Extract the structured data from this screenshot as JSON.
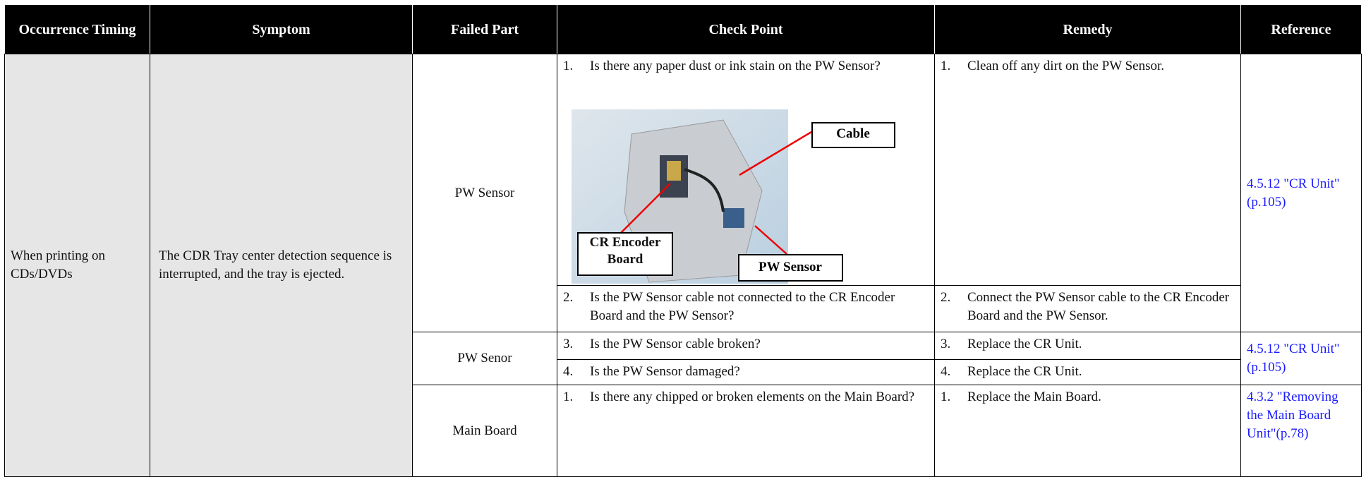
{
  "table": {
    "headers": [
      "Occurrence Timing",
      "Symptom",
      "Failed Part",
      "Check Point",
      "Remedy",
      "Reference"
    ],
    "occurrence_timing": "When printing on CDs/DVDs",
    "symptom": "The CDR Tray center detection sequence is interrupted, and the tray is ejected.",
    "failed_parts": [
      "PW Sensor",
      "PW Senor",
      "Main Board"
    ],
    "check_points": [
      {
        "num": "1.",
        "text": "Is there any paper dust or ink stain on the PW Sensor?"
      },
      {
        "num": "2.",
        "text": "Is the PW Sensor cable not connected to the CR Encoder Board and the PW Sensor?"
      },
      {
        "num": "3.",
        "text": "Is the PW Sensor cable broken?"
      },
      {
        "num": "4.",
        "text": "Is the PW Sensor damaged?"
      },
      {
        "num": "1.",
        "text": "Is there any chipped or broken elements on the Main Board?"
      }
    ],
    "remedies": [
      {
        "num": "1.",
        "text": "Clean off any dirt on the PW Sensor."
      },
      {
        "num": "2.",
        "text": "Connect the PW Sensor cable to the CR Encoder Board and the PW Sensor."
      },
      {
        "num": "3.",
        "text": "Replace the CR Unit."
      },
      {
        "num": "4.",
        "text": "Replace the CR Unit."
      },
      {
        "num": "1.",
        "text": "Replace the Main Board."
      }
    ],
    "references": [
      "4.5.12 \"CR Unit\"(p.105)",
      "4.5.12 \"CR Unit\"(p.105)",
      "4.3.2 \"Removing the Main Board Unit\"(p.78)"
    ],
    "figure_labels": [
      "Cable",
      "CR Encoder Board",
      "PW Sensor"
    ]
  }
}
